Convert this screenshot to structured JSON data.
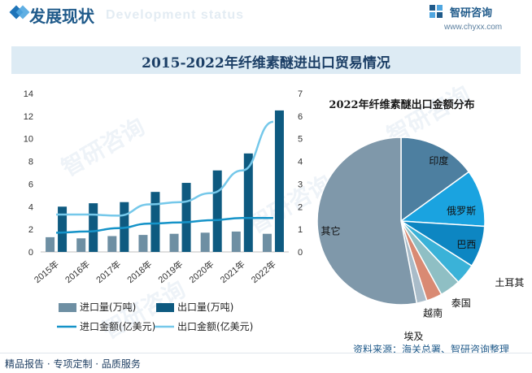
{
  "header": {
    "title": "发展现状",
    "subtitle_watermark": "Development status",
    "logo_name": "智研咨询",
    "logo_url": "www.chyxx.com"
  },
  "watermark": {
    "text": "智研咨询"
  },
  "footer": {
    "left": "精品报告 · 专项定制 · 品质服务",
    "source": "资料来源：海关总署、智研咨询整理"
  },
  "colors": {
    "import_volume": "#6e8fa3",
    "export_volume": "#0e5a80",
    "import_value": "#1593c8",
    "export_value": "#75c8ea",
    "pie": [
      "#4d7fa0",
      "#1aa3e0",
      "#0d86c2",
      "#3ab2d8",
      "#8fbfc4",
      "#d98a73",
      "#a9bcc9",
      "#7f98aa"
    ]
  },
  "chart_data": [
    {
      "type": "bar",
      "title": "2015-2022年纤维素醚进出口贸易情况",
      "categories": [
        "2015年",
        "2016年",
        "2017年",
        "2018年",
        "2019年",
        "2020年",
        "2021年",
        "2022年"
      ],
      "ylim_left": [
        0,
        14
      ],
      "yticks_left": [
        "0",
        "2",
        "4",
        "6",
        "8",
        "10",
        "12",
        "14"
      ],
      "ylim_right": [
        0,
        7
      ],
      "yticks_right": [
        "0",
        "1",
        "2",
        "3",
        "4",
        "5",
        "6",
        "7"
      ],
      "series": [
        {
          "name": "进口量(万吨)",
          "kind": "bar",
          "axis": "left",
          "values": [
            1.3,
            1.2,
            1.4,
            1.5,
            1.6,
            1.7,
            1.8,
            1.6
          ]
        },
        {
          "name": "出口量(万吨)",
          "kind": "bar",
          "axis": "left",
          "values": [
            4.0,
            4.3,
            4.4,
            5.3,
            6.1,
            7.2,
            8.7,
            12.5
          ]
        },
        {
          "name": "进口金额(亿美元)",
          "kind": "line",
          "axis": "right",
          "values": [
            0.85,
            0.9,
            1.05,
            1.25,
            1.3,
            1.4,
            1.5,
            1.5
          ]
        },
        {
          "name": "出口金额(亿美元)",
          "kind": "line",
          "axis": "right",
          "values": [
            1.65,
            1.65,
            1.6,
            2.1,
            2.2,
            2.6,
            3.6,
            5.75
          ]
        }
      ],
      "legend": [
        "进口量(万吨)",
        "出口量(万吨)",
        "进口金额(亿美元)",
        "出口金额(亿美元)"
      ]
    },
    {
      "type": "pie",
      "title": "2022年纤维素醚出口金额分布",
      "labels": [
        "印度",
        "俄罗斯",
        "巴西",
        "土耳其",
        "泰国",
        "越南",
        "埃及",
        "其它"
      ],
      "values": [
        15,
        11,
        8,
        4,
        4,
        3,
        2,
        53
      ]
    }
  ]
}
